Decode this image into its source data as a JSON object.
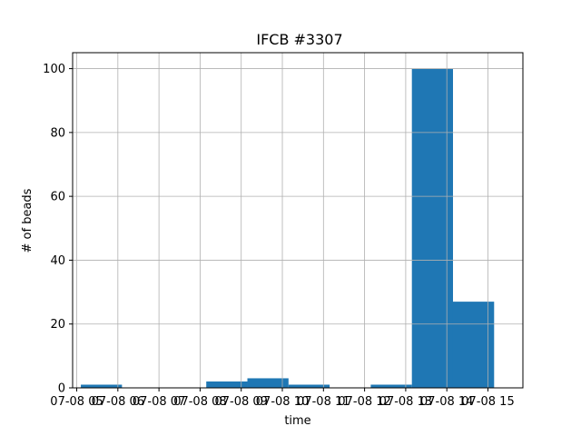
{
  "chart_data": {
    "type": "bar",
    "title": "IFCB #3307",
    "xlabel": "time",
    "ylabel": "# of beads",
    "ylim": [
      0,
      105
    ],
    "xlim": [
      4.9,
      15.85
    ],
    "grid": true,
    "bar_color": "#1f77b4",
    "x_ticks": [
      {
        "value": 5,
        "label": "07-08 05"
      },
      {
        "value": 6,
        "label": "07-08 06"
      },
      {
        "value": 7,
        "label": "07-08 07"
      },
      {
        "value": 8,
        "label": "07-08 08"
      },
      {
        "value": 9,
        "label": "07-08 09"
      },
      {
        "value": 10,
        "label": "07-08 10"
      },
      {
        "value": 11,
        "label": "07-08 11"
      },
      {
        "value": 12,
        "label": "07-08 12"
      },
      {
        "value": 13,
        "label": "07-08 13"
      },
      {
        "value": 14,
        "label": "07-08 14"
      },
      {
        "value": 15,
        "label": "07-08 15"
      }
    ],
    "y_ticks": [
      0,
      20,
      40,
      60,
      80,
      100
    ],
    "bins": [
      {
        "start": 5.1,
        "end": 6.1,
        "value": 1
      },
      {
        "start": 6.1,
        "end": 7.1,
        "value": 0
      },
      {
        "start": 7.1,
        "end": 8.15,
        "value": 0
      },
      {
        "start": 8.15,
        "end": 9.15,
        "value": 2
      },
      {
        "start": 9.15,
        "end": 10.15,
        "value": 3
      },
      {
        "start": 10.15,
        "end": 11.15,
        "value": 1
      },
      {
        "start": 11.15,
        "end": 12.15,
        "value": 0
      },
      {
        "start": 12.15,
        "end": 13.15,
        "value": 1
      },
      {
        "start": 13.15,
        "end": 14.15,
        "value": 100
      },
      {
        "start": 14.15,
        "end": 15.15,
        "value": 27
      }
    ]
  }
}
